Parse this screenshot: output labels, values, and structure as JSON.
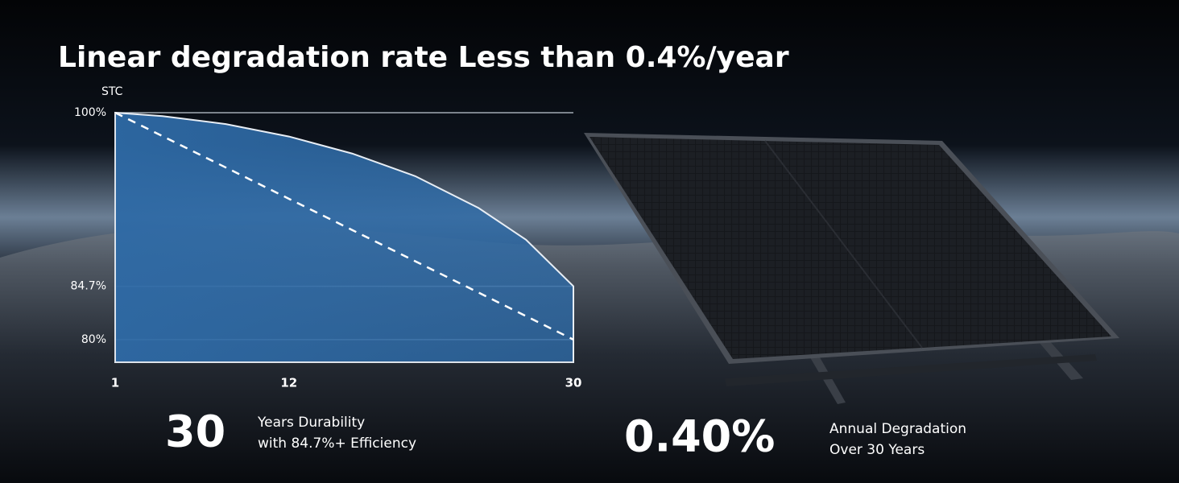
{
  "chart_data": {
    "type": "area",
    "title": "Linear degradation rate Less than 0.4%/year",
    "y_label": "STC",
    "x": [
      1,
      4,
      8,
      12,
      16,
      20,
      24,
      27,
      30
    ],
    "series": [
      {
        "color": "#2e6aa6",
        "fill": true,
        "values": [
          100,
          99.7,
          99.0,
          97.9,
          96.4,
          94.4,
          91.6,
          88.8,
          84.7
        ]
      },
      {
        "color": "#ffffff",
        "dashed": true,
        "values": [
          100,
          97.93,
          95.17,
          92.41,
          89.66,
          86.9,
          84.14,
          82.07,
          80
        ]
      }
    ],
    "xlim": [
      1,
      30
    ],
    "xticks": [
      1,
      12,
      30
    ],
    "ylim": [
      78,
      100
    ],
    "yticks": [
      {
        "value": 100,
        "label": "100%"
      },
      {
        "value": 84.7,
        "label": "84.7%"
      },
      {
        "value": 80,
        "label": "80%"
      }
    ],
    "grid": true
  },
  "stats": [
    {
      "number": "30",
      "lines": [
        "Years Durability",
        "with 84.7%+ Efficiency"
      ]
    },
    {
      "number": "0.40%",
      "lines": [
        "Annual Degradation",
        "Over 30 Years"
      ]
    }
  ]
}
